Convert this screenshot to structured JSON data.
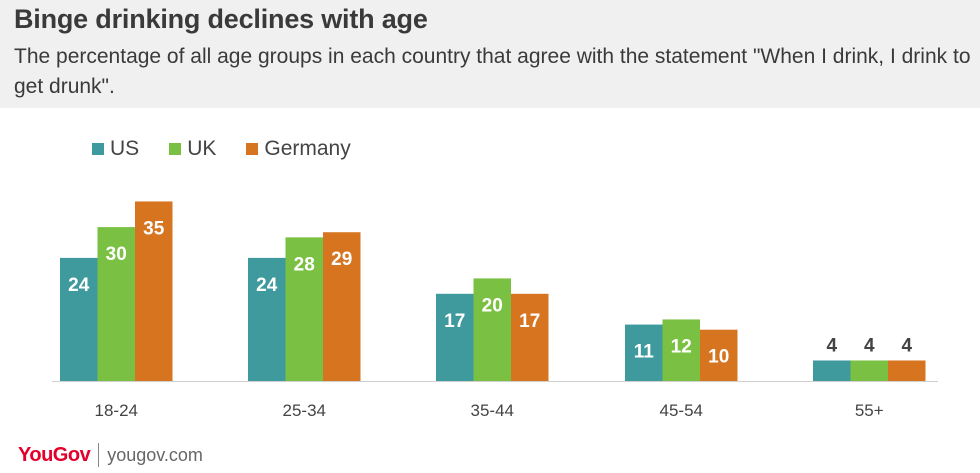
{
  "header": {
    "title": "Binge drinking declines with age",
    "subtitle": "The percentage of all age groups in each country that agree with the statement \"When I drink, I drink to get drunk\"."
  },
  "colors": {
    "US": "#3f9a9e",
    "UK": "#7ac143",
    "Germany": "#d7741f",
    "header_bg": "#f0f0f0",
    "brand": "#e4002b"
  },
  "footer": {
    "logo": "YouGov",
    "site": "yougov.com"
  },
  "chart_data": {
    "type": "bar",
    "categories": [
      "18-24",
      "25-34",
      "35-44",
      "45-54",
      "55+"
    ],
    "series": [
      {
        "name": "US",
        "values": [
          24,
          24,
          17,
          11,
          4
        ]
      },
      {
        "name": "UK",
        "values": [
          30,
          28,
          20,
          12,
          4
        ]
      },
      {
        "name": "Germany",
        "values": [
          35,
          29,
          17,
          10,
          4
        ]
      }
    ],
    "title": "Binge drinking declines with age",
    "xlabel": "",
    "ylabel": "",
    "ylim": [
      0,
      35
    ],
    "grid": false,
    "legend": "top-left"
  }
}
